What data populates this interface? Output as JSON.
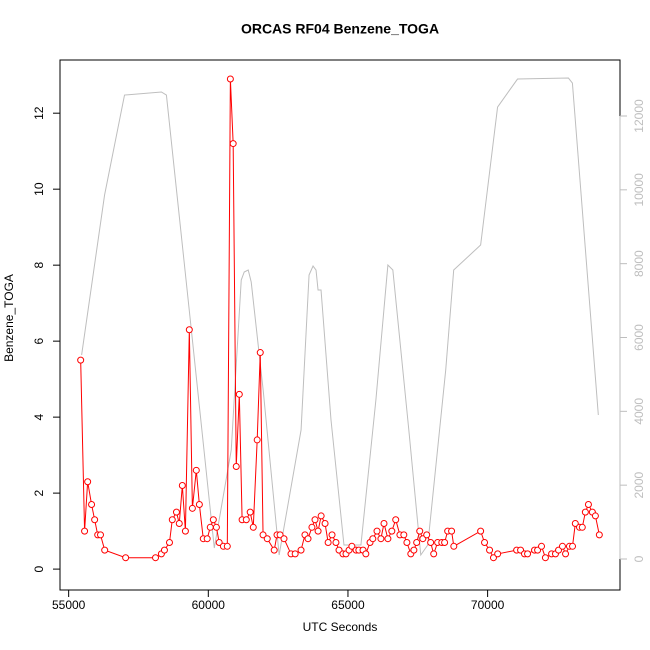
{
  "chart_data": {
    "type": "line",
    "title": "ORCAS RF04 Benzene_TOGA",
    "xlabel": "UTC Seconds",
    "ylabel": "Benzene_TOGA",
    "xlim": [
      54690,
      74740
    ],
    "xticks": [
      55000,
      60000,
      65000,
      70000
    ],
    "ylim": [
      -0.55,
      13.4
    ],
    "yticks": [
      0,
      2,
      4,
      6,
      8,
      10,
      12
    ],
    "y2lim": [
      -840,
      13517
    ],
    "y2ticks": [
      0,
      2000,
      4000,
      6000,
      8000,
      10000,
      12000
    ],
    "y2color": "#bebebe",
    "series": [
      {
        "color": "#bebebe",
        "axis": "y2",
        "markers": false,
        "x": [
          55464,
          56286,
          57000,
          58321,
          58500,
          59393,
          60214,
          60821,
          61179,
          61286,
          61429,
          61536,
          61964,
          62536,
          63321,
          63607,
          63750,
          63857,
          63929,
          64036,
          64393,
          64857,
          65464,
          66000,
          66429,
          66607,
          67179,
          67607,
          67857,
          68500,
          68786,
          69750,
          70357,
          71071,
          72893,
          73036,
          73964
        ],
        "values": [
          5526,
          9860,
          12568,
          12650,
          12568,
          6203,
          298,
          2952,
          7557,
          7774,
          7828,
          7503,
          4577,
          108,
          3494,
          7692,
          7936,
          7828,
          7286,
          7286,
          3765,
          379,
          379,
          4307,
          7963,
          7828,
          3494,
          108,
          379,
          5119,
          7828,
          8505,
          12243,
          13001,
          13028,
          12893,
          3900
        ]
      },
      {
        "color": "#ff0000",
        "axis": "y",
        "markers": true,
        "x": [
          55430,
          55570,
          55680,
          55820,
          55930,
          56040,
          56140,
          56290,
          57040,
          58110,
          58320,
          58430,
          58610,
          58710,
          58860,
          58960,
          59070,
          59180,
          59320,
          59430,
          59570,
          59680,
          59820,
          59960,
          60070,
          60180,
          60290,
          60390,
          60540,
          60680,
          60790,
          60890,
          61000,
          61110,
          61210,
          61360,
          61500,
          61610,
          61750,
          61860,
          61960,
          62110,
          62360,
          62460,
          62570,
          62710,
          62960,
          63110,
          63320,
          63460,
          63570,
          63710,
          63820,
          63930,
          64040,
          64180,
          64290,
          64430,
          64570,
          64680,
          64820,
          64930,
          65040,
          65140,
          65290,
          65390,
          65540,
          65640,
          65790,
          65890,
          66040,
          66180,
          66290,
          66430,
          66570,
          66710,
          66860,
          67000,
          67110,
          67250,
          67360,
          67460,
          67570,
          67680,
          67820,
          67960,
          68070,
          68210,
          68360,
          68460,
          68570,
          68710,
          68790,
          69750,
          69890,
          70070,
          70210,
          70360,
          71040,
          71180,
          71320,
          71430,
          71680,
          71790,
          71930,
          72070,
          72290,
          72430,
          72540,
          72680,
          72790,
          72930,
          73040,
          73140,
          73290,
          73390,
          73500,
          73610,
          73750,
          73860,
          74000
        ],
        "values": [
          5.5,
          1.0,
          2.3,
          1.7,
          1.3,
          0.9,
          0.9,
          0.5,
          0.3,
          0.3,
          0.4,
          0.5,
          0.7,
          1.3,
          1.5,
          1.2,
          2.2,
          1.0,
          6.3,
          1.6,
          2.6,
          1.7,
          0.8,
          0.8,
          1.1,
          1.3,
          1.1,
          0.7,
          0.6,
          0.6,
          12.9,
          11.2,
          2.7,
          4.6,
          1.3,
          1.3,
          1.5,
          1.1,
          3.4,
          5.7,
          0.9,
          0.8,
          0.5,
          0.9,
          0.9,
          0.8,
          0.4,
          0.4,
          0.5,
          0.9,
          0.8,
          1.1,
          1.3,
          1.0,
          1.4,
          1.2,
          0.7,
          0.9,
          0.7,
          0.5,
          0.4,
          0.4,
          0.5,
          0.6,
          0.5,
          0.5,
          0.5,
          0.4,
          0.7,
          0.8,
          1.0,
          0.8,
          1.2,
          0.8,
          1.0,
          1.3,
          0.9,
          0.9,
          0.7,
          0.4,
          0.5,
          0.7,
          1.0,
          0.8,
          0.9,
          0.7,
          0.4,
          0.7,
          0.7,
          0.7,
          1.0,
          1.0,
          0.6,
          1.0,
          0.7,
          0.5,
          0.3,
          0.4,
          0.5,
          0.5,
          0.4,
          0.4,
          0.5,
          0.5,
          0.6,
          0.3,
          0.4,
          0.4,
          0.5,
          0.6,
          0.4,
          0.6,
          0.6,
          1.2,
          1.1,
          1.1,
          1.5,
          1.7,
          1.5,
          1.4,
          0.9
        ]
      }
    ]
  }
}
